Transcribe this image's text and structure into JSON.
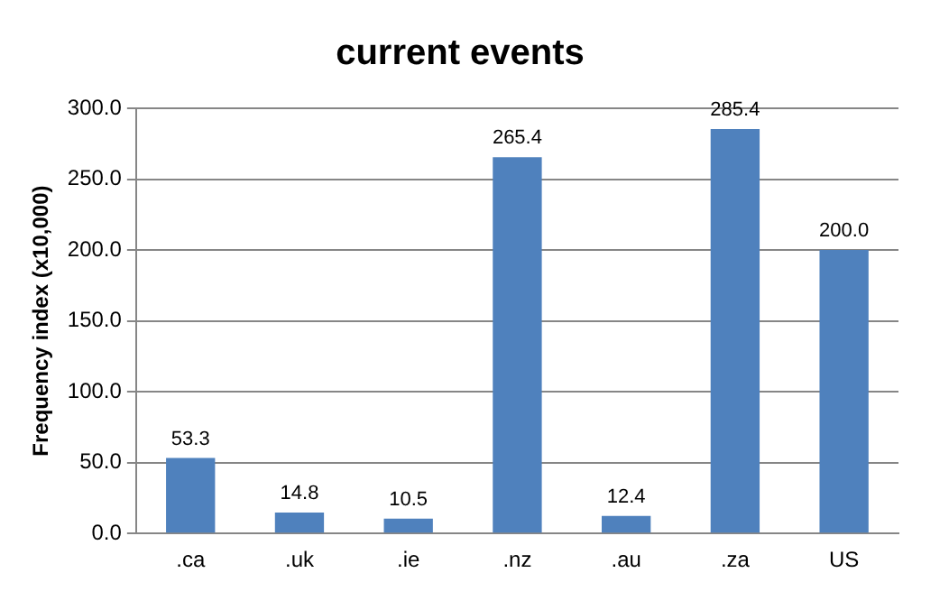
{
  "chart_data": {
    "type": "bar",
    "title": "current events",
    "ylabel": "Frequency index (x10,000)",
    "categories": [
      ".ca",
      ".uk",
      ".ie",
      ".nz",
      ".au",
      ".za",
      "US"
    ],
    "values": [
      53.3,
      14.8,
      10.5,
      265.4,
      12.4,
      285.4,
      200.0
    ],
    "value_labels": [
      "53.3",
      "14.8",
      "10.5",
      "265.4",
      "12.4",
      "285.4",
      "200.0"
    ],
    "color": "#4f81bd",
    "ylim": [
      0,
      300
    ],
    "yticks": [
      {
        "value": 0,
        "label": "0.0"
      },
      {
        "value": 50,
        "label": "50.0"
      },
      {
        "value": 100,
        "label": "100.0"
      },
      {
        "value": 150,
        "label": "150.0"
      },
      {
        "value": 200,
        "label": "200.0"
      },
      {
        "value": 250,
        "label": "250.0"
      },
      {
        "value": 300,
        "label": "300.0"
      }
    ],
    "grid": "y",
    "legend": false
  }
}
